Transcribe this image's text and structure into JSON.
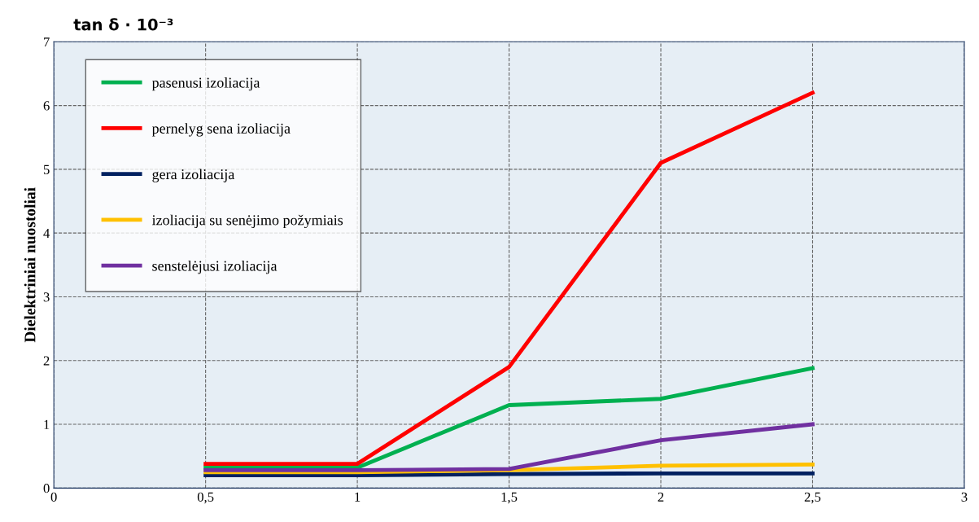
{
  "chart_data": {
    "type": "line",
    "title": "tan δ · 10⁻³",
    "ylabel": "Dielektriniai nuostoliai",
    "x": [
      0.5,
      1,
      1.5,
      2,
      2.5
    ],
    "series": [
      {
        "name": "pasenusi izoliacija",
        "color": "#00b050",
        "values": [
          0.32,
          0.32,
          1.3,
          1.4,
          1.88
        ]
      },
      {
        "name": "pernelyg sena izoliacija",
        "color": "#ff0000",
        "values": [
          0.38,
          0.38,
          1.9,
          5.1,
          6.2
        ]
      },
      {
        "name": "gera izoliacija",
        "color": "#002060",
        "values": [
          0.2,
          0.2,
          0.22,
          0.23,
          0.23
        ]
      },
      {
        "name": "izoliacija su senėjimo požymiais",
        "color": "#ffc000",
        "values": [
          0.25,
          0.25,
          0.28,
          0.35,
          0.37
        ]
      },
      {
        "name": "senstelėjusi izoliacija",
        "color": "#7030a0",
        "values": [
          0.28,
          0.28,
          0.3,
          0.75,
          1.0
        ]
      }
    ],
    "xlim": [
      0,
      3
    ],
    "ylim": [
      0,
      7
    ],
    "xticks": [
      0,
      {
        "value": 0.5,
        "label": "0,5"
      },
      1,
      {
        "value": 1.5,
        "label": "1,5"
      },
      2,
      {
        "value": 2.5,
        "label": "2,5"
      },
      3
    ],
    "yticks": [
      0,
      1,
      2,
      3,
      4,
      5,
      6,
      7
    ],
    "grid": true,
    "legend": "top left",
    "marker": "none",
    "line_style": "solid"
  }
}
